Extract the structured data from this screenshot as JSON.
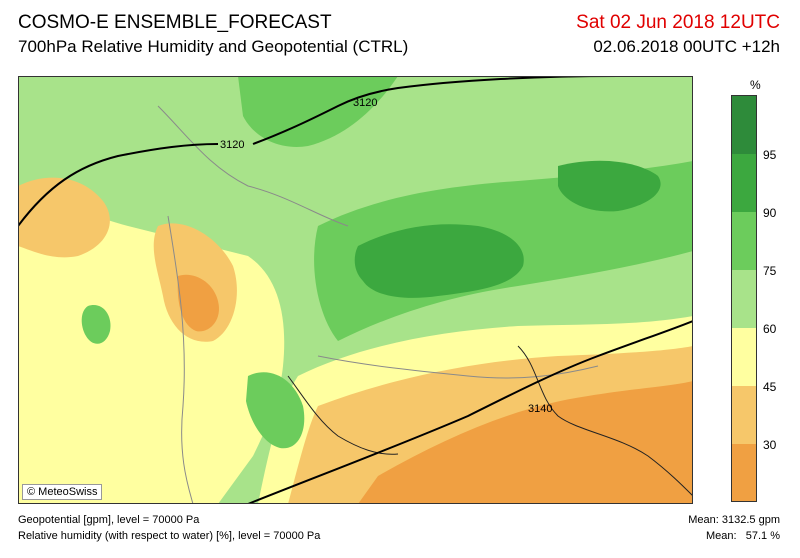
{
  "header": {
    "title": "COSMO-E ENSEMBLE_FORECAST",
    "subtitle": "700hPa Relative Humidity and Geopotential (CTRL)",
    "valid_time": "Sat 02 Jun 2018 12UTC",
    "run_time": "02.06.2018 00UTC +12h"
  },
  "map": {
    "credit": "© MeteoSwiss",
    "contour_labels": [
      "3120",
      "3120",
      "3140"
    ]
  },
  "legend": {
    "unit": "%",
    "ticks": [
      "95",
      "90",
      "75",
      "60",
      "45",
      "30"
    ],
    "colors": [
      "#2e8b3a",
      "#3ca83f",
      "#6ccc5c",
      "#a8e38a",
      "#ffffa0",
      "#f6c76a",
      "#f0a042"
    ]
  },
  "footer": {
    "line1": "Geopotential [gpm], level = 70000 Pa",
    "line2": "Relative humidity (with respect to water) [%], level = 70000 Pa",
    "mean1": "Mean: 3132.5 gpm",
    "mean2": "Mean:   57.1 %"
  }
}
